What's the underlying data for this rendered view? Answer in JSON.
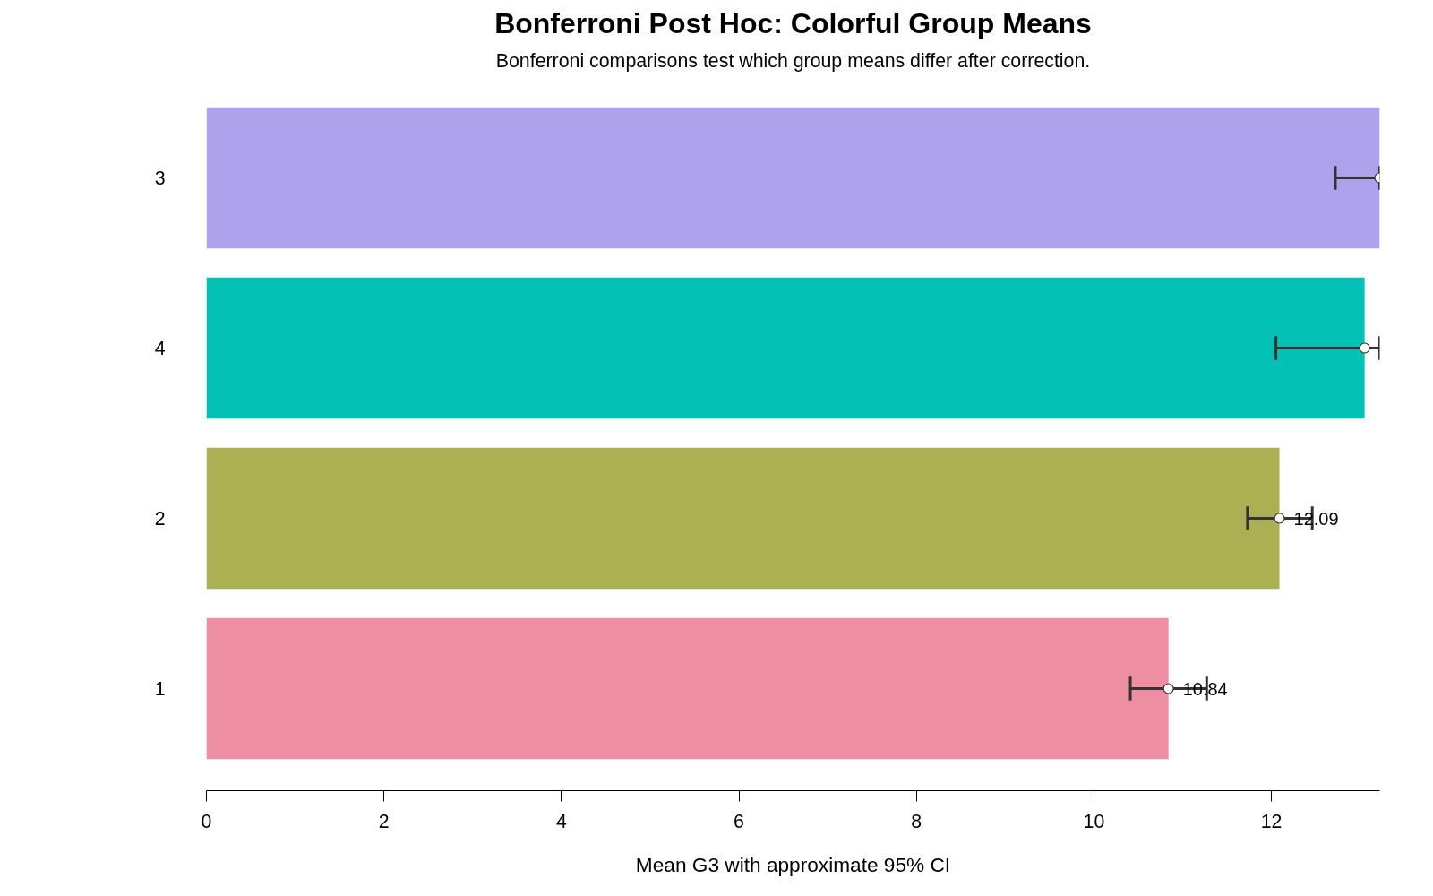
{
  "chart_data": {
    "type": "bar",
    "orientation": "horizontal",
    "title": "Bonferroni Post Hoc: Colorful Group Means",
    "subtitle": "Bonferroni comparisons test which group means differ after correction.",
    "xlabel": "Mean G3 with approximate 95% CI",
    "categories": [
      "3",
      "4",
      "2",
      "1"
    ],
    "series": [
      {
        "colors": [
          "#ada2eb",
          "#03c1b4",
          "#abb152",
          "#ed8ea2"
        ],
        "values": [
          13.22,
          13.05,
          12.09,
          10.84
        ],
        "value_labels": [
          null,
          null,
          "12.09",
          "10.84"
        ]
      },
      {
        "type": "scatter",
        "color": "#ffffff",
        "marker": "circle",
        "values": [
          13.22,
          13.05,
          12.09,
          10.84
        ],
        "errors": [
          [
            12.72,
            13.22
          ],
          [
            12.05,
            13.22
          ],
          [
            11.73,
            12.46
          ],
          [
            10.41,
            11.27
          ]
        ]
      }
    ],
    "xlim": [
      0,
      13.22
    ],
    "xticks": [
      0,
      2,
      4,
      6,
      8,
      10,
      12
    ],
    "grid": false
  }
}
